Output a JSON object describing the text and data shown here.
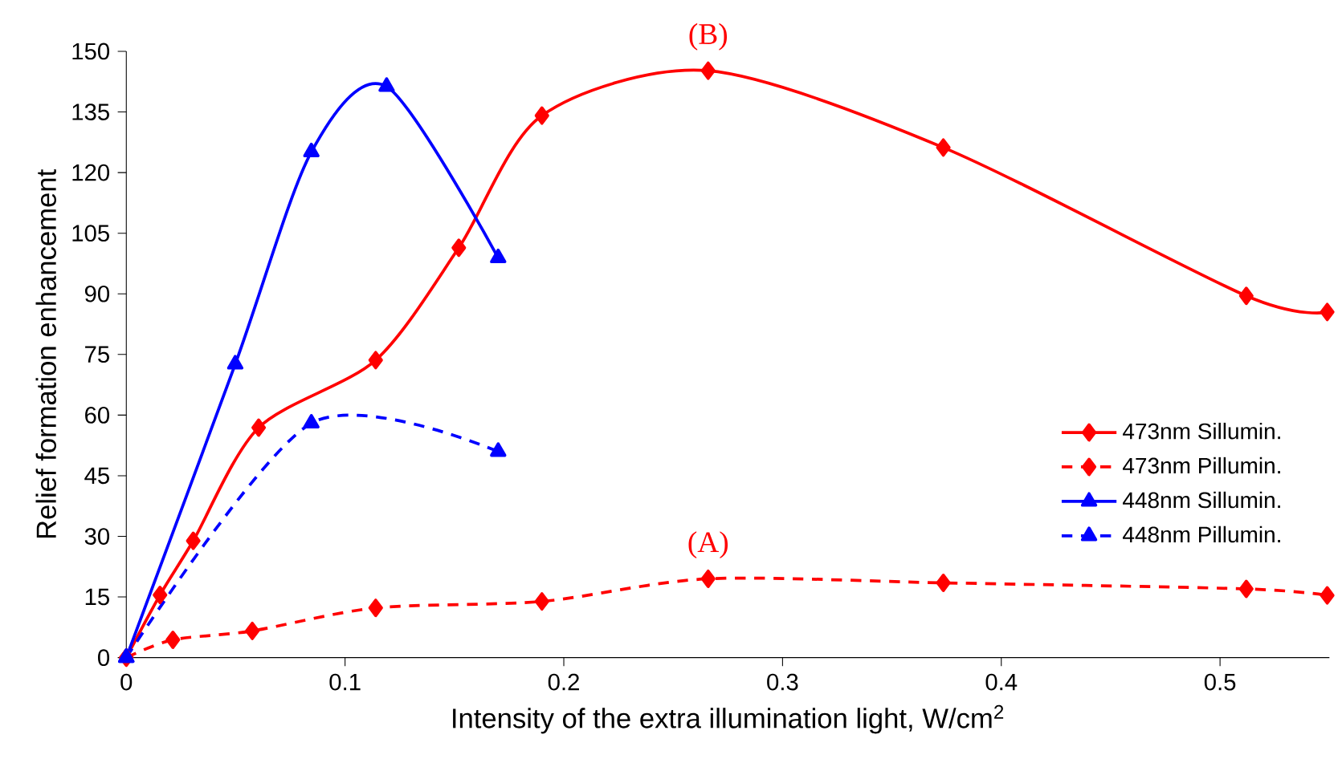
{
  "chart_data": {
    "type": "line",
    "xlabel": "Intensity of the extra illumination light, W/cm$^{2}$",
    "ylabel": "Relief formation enhancement",
    "xlim": [
      0,
      0.55
    ],
    "ylim": [
      0,
      150
    ],
    "xticks": [
      0,
      0.1,
      0.2,
      0.3,
      0.4,
      0.5
    ],
    "yticks": [
      0,
      15,
      30,
      45,
      60,
      75,
      90,
      105,
      120,
      135,
      150
    ],
    "grid": false,
    "legend": "bottom right",
    "series": [
      {
        "name": "473nm Sillumin.",
        "color": "#ff0000",
        "marker": "diamond",
        "line_style": "solid",
        "x": [
          0,
          0.0154,
          0.0306,
          0.0605,
          0.114,
          0.152,
          0.19,
          0.266,
          0.3735,
          0.512,
          0.549
        ],
        "values": [
          0,
          15.5,
          28.9,
          56.9,
          73.6,
          101.4,
          134.1,
          145.2,
          126.2,
          89.5,
          85.5
        ]
      },
      {
        "name": "473nm Pillumin.",
        "color": "#ff0000",
        "marker": "diamond",
        "line_style": "dashed",
        "x": [
          0,
          0.0213,
          0.0576,
          0.114,
          0.19,
          0.266,
          0.3735,
          0.512,
          0.549
        ],
        "values": [
          0,
          4.4,
          6.6,
          12.3,
          13.9,
          19.5,
          18.5,
          17.0,
          15.4
        ]
      },
      {
        "name": "448nm Sillumin.",
        "color": "#0000ff",
        "marker": "triangle",
        "line_style": "solid",
        "x": [
          0,
          0.0498,
          0.0846,
          0.119,
          0.17
        ],
        "values": [
          0,
          72.6,
          125.1,
          141.3,
          98.9
        ]
      },
      {
        "name": "448nm Pillumin.",
        "color": "#0000ff",
        "marker": "triangle",
        "line_style": "dashed",
        "x": [
          0,
          0.0846,
          0.17
        ],
        "values": [
          0,
          58.0,
          51.0
        ]
      }
    ],
    "annotations": [
      {
        "text": "(B)",
        "x": 0.266,
        "y": 145.2
      },
      {
        "text": "(A)",
        "x": 0.266,
        "y": 19.5
      }
    ]
  }
}
